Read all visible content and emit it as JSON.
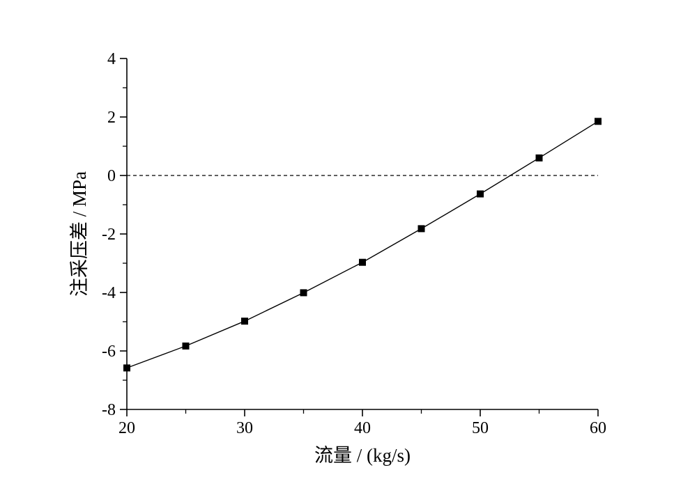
{
  "chart_data": {
    "type": "line",
    "title": "",
    "xlabel": "流量 / (kg/s)",
    "ylabel": "注采压差 / MPa",
    "xlim": [
      20,
      60
    ],
    "ylim": [
      -8,
      4
    ],
    "x_ticks": [
      20,
      30,
      40,
      50,
      60
    ],
    "x_tick_labels": [
      "20",
      "30",
      "40",
      "50",
      "60"
    ],
    "y_ticks": [
      -8,
      -6,
      -4,
      -2,
      0,
      2,
      4
    ],
    "y_tick_labels": [
      "-8",
      "-6",
      "-4",
      "-2",
      "0",
      "2",
      "4"
    ],
    "x_minor_step": 5,
    "y_minor_step": 1,
    "grid": false,
    "reference_line": {
      "y": 0,
      "style": "dashed"
    },
    "series": [
      {
        "marker": "square",
        "color": "#000000",
        "x": [
          20,
          25,
          30,
          35,
          40,
          45,
          50,
          55,
          60
        ],
        "y": [
          -6.58,
          -5.83,
          -4.98,
          -4.01,
          -2.97,
          -1.82,
          -0.63,
          0.6,
          1.85
        ]
      }
    ]
  }
}
